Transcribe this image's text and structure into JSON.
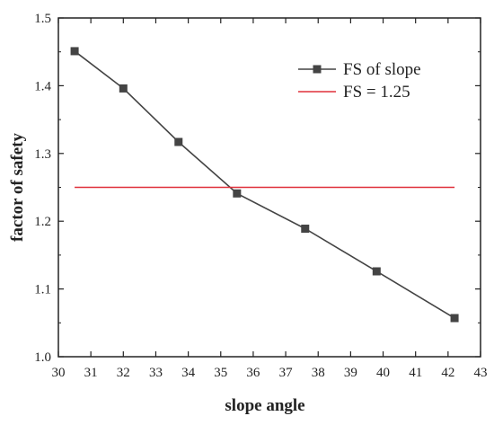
{
  "chart_data": {
    "type": "line",
    "title": "",
    "xlabel": "slope angle",
    "ylabel": "factor of safety",
    "xlim": [
      30,
      43
    ],
    "ylim": [
      1.0,
      1.5
    ],
    "xticks": [
      "30",
      "31",
      "32",
      "33",
      "34",
      "35",
      "36",
      "37",
      "38",
      "39",
      "40",
      "41",
      "42",
      "43"
    ],
    "yticks": [
      "1.0",
      "1.1",
      "1.2",
      "1.3",
      "1.4",
      "1.5"
    ],
    "grid": false,
    "legend_position": "top-right",
    "series": [
      {
        "name": "FS of slope",
        "color": "#444444",
        "marker": "square",
        "x": [
          30.5,
          32.0,
          33.7,
          35.5,
          37.6,
          39.8,
          42.2
        ],
        "y": [
          1.451,
          1.396,
          1.317,
          1.241,
          1.189,
          1.126,
          1.057
        ]
      },
      {
        "name": "FS = 1.25",
        "color": "#e0303a",
        "marker": "none",
        "x": [
          30.5,
          42.2
        ],
        "y": [
          1.25,
          1.25
        ]
      }
    ]
  }
}
